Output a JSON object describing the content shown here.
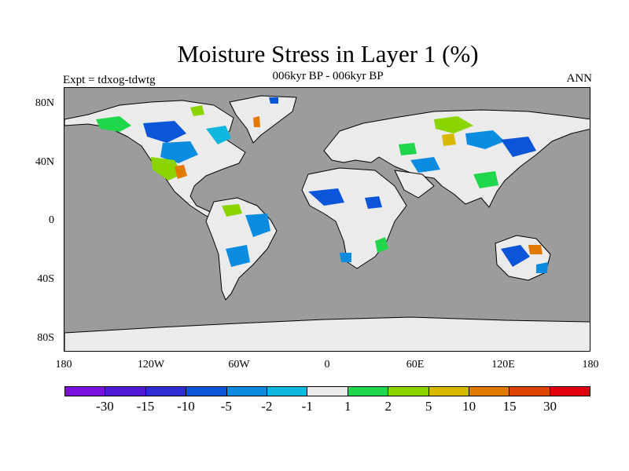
{
  "title": "Moisture Stress in Layer 1 (%)",
  "subtitle": "006kyr BP - 006kyr BP",
  "left_label": "Expt = tdxog-tdwtg",
  "right_label": "ANN",
  "map": {
    "ocean_color": "#9c9c9c",
    "land_neutral_color": "#ebebeb",
    "y_ticks": [
      "80N",
      "40N",
      "0",
      "40S",
      "80S"
    ],
    "x_ticks": [
      "180",
      "120W",
      "60W",
      "0",
      "60E",
      "120E",
      "180"
    ]
  },
  "colorbar": {
    "colors": [
      "#7a10e0",
      "#5218d8",
      "#2f2ed4",
      "#0a55d8",
      "#0a8ce0",
      "#10b8e0",
      "#ebebeb",
      "#20d64a",
      "#8cd400",
      "#d8b800",
      "#e07a00",
      "#dc4400",
      "#e00010"
    ],
    "labels": [
      "-30",
      "-15",
      "-10",
      "-5",
      "-2",
      "-1",
      "1",
      "2",
      "5",
      "10",
      "15",
      "30"
    ]
  }
}
